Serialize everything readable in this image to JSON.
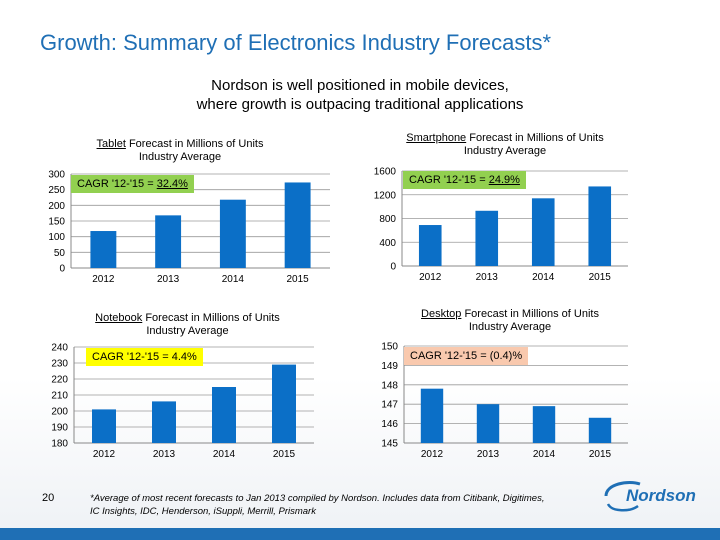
{
  "title": "Growth: Summary of Electronics Industry Forecasts*",
  "subtitle": {
    "line1": "Nordson is well positioned in mobile devices,",
    "line2": "where growth is outpacing traditional applications"
  },
  "page_number": "20",
  "footnote": {
    "line1": "*Average of most recent forecasts  to Jan 2013 compiled by Nordson.  Includes data from Citibank, Digitimes,",
    "line2": "IC Insights, IDC, Henderson, iSuppli, Merrill, Prismark"
  },
  "logo_text": "Nordson",
  "colors": {
    "title": "#1f6fb5",
    "bar": "#0b6fc7",
    "cagr_green": "#92d050",
    "cagr_yellow": "#ffff00",
    "cagr_salmon": "#f9c9ae",
    "bottom_bar": "#1f6fb5"
  },
  "chart_data": [
    {
      "type": "bar",
      "title_underlined": "Tablet",
      "title_rest": " Forecast in Millions of Units",
      "title_line2": "Industry Average",
      "categories": [
        "2012",
        "2013",
        "2014",
        "2015"
      ],
      "values": [
        118,
        168,
        218,
        273
      ],
      "ylim": [
        0,
        300
      ],
      "yticks": [
        0,
        50,
        100,
        150,
        200,
        250,
        300
      ],
      "cagr_label": "CAGR '12-'15 = ",
      "cagr_value": "32.4%",
      "cagr_color": "green",
      "grid": true
    },
    {
      "type": "bar",
      "title_underlined": "Smartphone",
      "title_rest": " Forecast in Millions of Units",
      "title_line2": "Industry Average",
      "categories": [
        "2012",
        "2013",
        "2014",
        "2015"
      ],
      "values": [
        690,
        930,
        1140,
        1340
      ],
      "ylim": [
        0,
        1600
      ],
      "yticks": [
        0,
        400,
        800,
        1200,
        1600
      ],
      "cagr_label": "CAGR '12-'15 = ",
      "cagr_value": "24.9%",
      "cagr_color": "green",
      "grid": true
    },
    {
      "type": "bar",
      "title_underlined": "Notebook",
      "title_rest": " Forecast in Millions of Units",
      "title_line2": "Industry Average",
      "categories": [
        "2012",
        "2013",
        "2014",
        "2015"
      ],
      "values": [
        201,
        206,
        215,
        229
      ],
      "ylim": [
        180,
        240
      ],
      "yticks": [
        180,
        190,
        200,
        210,
        220,
        230,
        240
      ],
      "cagr_label": "CAGR '12-'15 = 4.4%",
      "cagr_value": "",
      "cagr_color": "yellow",
      "grid": true
    },
    {
      "type": "bar",
      "title_underlined": "Desktop",
      "title_rest": " Forecast in Millions of Units",
      "title_line2": "Industry Average",
      "categories": [
        "2012",
        "2013",
        "2014",
        "2015"
      ],
      "values": [
        147.8,
        147.0,
        146.9,
        146.3
      ],
      "ylim": [
        145,
        150
      ],
      "yticks": [
        145,
        146,
        147,
        148,
        149,
        150
      ],
      "cagr_label": "CAGR '12-'15 =  (0.4)%",
      "cagr_value": "",
      "cagr_color": "salmon",
      "grid": true
    }
  ]
}
